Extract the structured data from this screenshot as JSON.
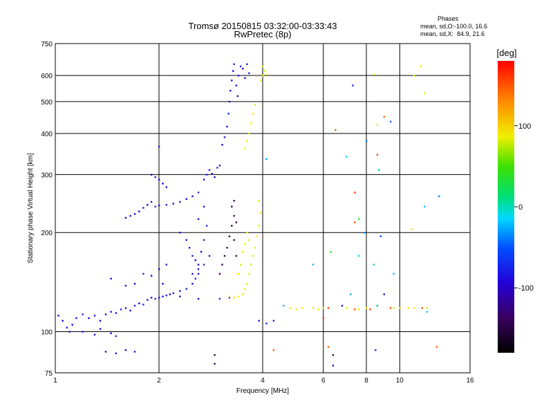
{
  "chart_data": {
    "type": "scatter",
    "title": "Tromsø 20150815 03:32:00-03:33:43",
    "subtitle": "RwPretec (8p)",
    "xlabel": "Frequency [MHz]",
    "ylabel": "Stationary phase Virtual Height [km]",
    "x_scale": "log",
    "y_scale": "log",
    "xlim": [
      1,
      16
    ],
    "ylim": [
      75,
      750
    ],
    "grid": true,
    "x_ticks": [
      "1",
      "2",
      "4",
      "6",
      "8",
      "10",
      "16"
    ],
    "x_tick_values": [
      1,
      2,
      4,
      6,
      8,
      10,
      16
    ],
    "y_ticks": [
      "75",
      "100",
      "200",
      "300",
      "400",
      "500",
      "600",
      "750"
    ],
    "y_tick_values": [
      75,
      100,
      200,
      300,
      400,
      500,
      600,
      750
    ],
    "legend": {
      "title": "Phases",
      "lines": [
        "mean, sd,O:-100.0, 16.6",
        "mean, sd,X:  84.9, 21.6"
      ]
    },
    "colorbar": {
      "label": "[deg]",
      "ticks": [
        "100",
        "0",
        "-100"
      ],
      "tick_values": [
        100,
        0,
        -100
      ],
      "range": [
        -180,
        180
      ]
    },
    "series": [
      {
        "polarization": "O",
        "points": [
          [
            1.02,
            112,
            -110
          ],
          [
            1.05,
            108,
            -112
          ],
          [
            1.08,
            103,
            -105
          ],
          [
            1.12,
            105,
            -108
          ],
          [
            1.15,
            110,
            -112
          ],
          [
            1.2,
            113,
            -100
          ],
          [
            1.25,
            110,
            -110
          ],
          [
            1.3,
            112,
            -105
          ],
          [
            1.35,
            108,
            -112
          ],
          [
            1.4,
            113,
            -110
          ],
          [
            1.45,
            115,
            -105
          ],
          [
            1.5,
            114,
            -110
          ],
          [
            1.55,
            117,
            -100
          ],
          [
            1.6,
            118,
            -108
          ],
          [
            1.65,
            116,
            -112
          ],
          [
            1.7,
            120,
            -105
          ],
          [
            1.75,
            122,
            -110
          ],
          [
            1.8,
            121,
            -100
          ],
          [
            1.85,
            125,
            -112
          ],
          [
            1.9,
            127,
            -108
          ],
          [
            1.95,
            126,
            -100
          ],
          [
            2.0,
            127,
            -110
          ],
          [
            2.05,
            128,
            -105
          ],
          [
            2.1,
            129,
            -100
          ],
          [
            2.15,
            130,
            -110
          ],
          [
            2.2,
            131,
            -105
          ],
          [
            2.3,
            133,
            -112
          ],
          [
            2.4,
            135,
            -100
          ],
          [
            2.5,
            140,
            -110
          ],
          [
            2.6,
            150,
            -108
          ],
          [
            2.7,
            160,
            -100
          ],
          [
            2.8,
            170,
            -112
          ],
          [
            1.1,
            100,
            -110
          ],
          [
            1.2,
            100,
            -105
          ],
          [
            1.3,
            98,
            -112
          ],
          [
            1.35,
            102,
            -108
          ],
          [
            1.45,
            99,
            -110
          ],
          [
            1.5,
            97,
            -100
          ],
          [
            1.4,
            87,
            -112
          ],
          [
            1.5,
            86,
            -108
          ],
          [
            1.6,
            88,
            -110
          ],
          [
            1.7,
            87,
            -105
          ],
          [
            1.45,
            145,
            -110
          ],
          [
            1.6,
            138,
            -105
          ],
          [
            1.7,
            140,
            -108
          ],
          [
            1.8,
            150,
            -100
          ],
          [
            1.9,
            148,
            -110
          ],
          [
            2.0,
            155,
            -112
          ],
          [
            2.1,
            160,
            -100
          ],
          [
            2.05,
            140,
            -108
          ],
          [
            1.6,
            222,
            -110
          ],
          [
            1.65,
            225,
            -105
          ],
          [
            1.7,
            228,
            -112
          ],
          [
            1.75,
            232,
            -110
          ],
          [
            1.8,
            238,
            -100
          ],
          [
            1.85,
            243,
            -108
          ],
          [
            1.9,
            248,
            -110
          ],
          [
            1.95,
            240,
            -105
          ],
          [
            2.0,
            242,
            -110
          ],
          [
            2.1,
            243,
            -100
          ],
          [
            2.2,
            245,
            -112
          ],
          [
            2.3,
            248,
            -105
          ],
          [
            2.4,
            253,
            -110
          ],
          [
            2.5,
            258,
            -108
          ],
          [
            2.6,
            265,
            -100
          ],
          [
            1.9,
            300,
            -110
          ],
          [
            1.95,
            295,
            -105
          ],
          [
            2.0,
            290,
            -112
          ],
          [
            2.05,
            282,
            -108
          ],
          [
            2.1,
            275,
            -110
          ],
          [
            2.0,
            365,
            -100
          ],
          [
            2.3,
            200,
            -110
          ],
          [
            2.4,
            190,
            -105
          ],
          [
            2.45,
            180,
            -112
          ],
          [
            2.5,
            170,
            -100
          ],
          [
            2.55,
            165,
            -108
          ],
          [
            2.6,
            160,
            -110
          ],
          [
            2.5,
            150,
            -105
          ],
          [
            2.55,
            145,
            -100
          ],
          [
            2.6,
            155,
            -112
          ],
          [
            2.65,
            175,
            -110
          ],
          [
            2.7,
            190,
            -105
          ],
          [
            2.75,
            210,
            -100
          ],
          [
            2.6,
            220,
            -112
          ],
          [
            2.7,
            240,
            -110
          ],
          [
            2.7,
            290,
            -110
          ],
          [
            2.75,
            300,
            -100
          ],
          [
            2.8,
            310,
            -105
          ],
          [
            2.85,
            302,
            -112
          ],
          [
            2.9,
            295,
            -110
          ],
          [
            2.95,
            315,
            -100
          ],
          [
            3.0,
            320,
            -108
          ],
          [
            3.05,
            370,
            -110
          ],
          [
            3.1,
            390,
            -105
          ],
          [
            3.15,
            420,
            -112
          ],
          [
            3.18,
            460,
            -100
          ],
          [
            3.2,
            500,
            -110
          ],
          [
            3.22,
            540,
            -108
          ],
          [
            3.25,
            580,
            -105
          ],
          [
            3.28,
            620,
            -110
          ],
          [
            3.3,
            650,
            -100
          ],
          [
            3.35,
            560,
            -112
          ],
          [
            3.38,
            520,
            -110
          ],
          [
            3.4,
            600,
            -105
          ],
          [
            3.45,
            640,
            -100
          ],
          [
            3.5,
            630,
            -110
          ],
          [
            3.55,
            590,
            -112
          ],
          [
            3.6,
            650,
            -108
          ],
          [
            3.65,
            610,
            -100
          ],
          [
            2.3,
            128,
            -105
          ],
          [
            2.6,
            126,
            -110
          ],
          [
            3.0,
            126,
            -100
          ],
          [
            3.2,
            127,
            -112
          ],
          [
            3.9,
            108,
            -110
          ],
          [
            4.1,
            106,
            -100
          ],
          [
            4.3,
            108,
            -105
          ],
          [
            6.4,
            79,
            -110
          ],
          [
            8.5,
            88,
            -100
          ],
          [
            6.8,
            120,
            -108
          ]
        ]
      },
      {
        "polarization": "O-purple",
        "points": [
          [
            3.0,
            150,
            -140
          ],
          [
            3.05,
            160,
            -150
          ],
          [
            3.1,
            170,
            -145
          ],
          [
            3.15,
            180,
            -140
          ],
          [
            3.2,
            195,
            -150
          ],
          [
            3.25,
            210,
            -145
          ],
          [
            3.3,
            225,
            -140
          ],
          [
            3.35,
            215,
            -150
          ],
          [
            3.25,
            240,
            -145
          ],
          [
            3.3,
            250,
            -140
          ],
          [
            3.3,
            190,
            -150
          ],
          [
            3.35,
            170,
            -145
          ],
          [
            2.9,
            85,
            -150
          ],
          [
            2.9,
            80,
            -140
          ],
          [
            6.4,
            85,
            -145
          ]
        ]
      },
      {
        "polarization": "X",
        "points": [
          [
            3.2,
            128,
            80
          ],
          [
            3.3,
            127,
            85
          ],
          [
            3.4,
            128,
            90
          ],
          [
            3.5,
            130,
            78
          ],
          [
            3.55,
            135,
            85
          ],
          [
            3.6,
            140,
            88
          ],
          [
            3.65,
            150,
            82
          ],
          [
            3.7,
            160,
            90
          ],
          [
            3.75,
            170,
            80
          ],
          [
            3.8,
            180,
            85
          ],
          [
            3.85,
            195,
            88
          ],
          [
            3.9,
            210,
            82
          ],
          [
            3.95,
            230,
            90
          ],
          [
            3.9,
            250,
            80
          ],
          [
            3.4,
            150,
            85
          ],
          [
            3.45,
            160,
            80
          ],
          [
            3.5,
            175,
            90
          ],
          [
            3.55,
            185,
            85
          ],
          [
            3.6,
            200,
            82
          ],
          [
            3.65,
            190,
            88
          ],
          [
            3.55,
            360,
            85
          ],
          [
            3.6,
            380,
            90
          ],
          [
            3.65,
            400,
            80
          ],
          [
            3.7,
            430,
            85
          ],
          [
            3.75,
            460,
            88
          ],
          [
            3.8,
            490,
            82
          ],
          [
            3.95,
            580,
            85
          ],
          [
            4.0,
            600,
            90
          ],
          [
            4.05,
            620,
            80
          ],
          [
            4.1,
            605,
            85
          ],
          [
            4.0,
            640,
            88
          ],
          [
            4.8,
            118,
            82
          ],
          [
            5.0,
            117,
            85
          ],
          [
            5.2,
            118,
            90
          ],
          [
            5.6,
            118,
            80
          ],
          [
            5.8,
            117,
            85
          ],
          [
            6.0,
            118,
            88
          ],
          [
            7.0,
            118,
            82
          ],
          [
            7.6,
            117,
            85
          ],
          [
            8.0,
            118,
            90
          ],
          [
            9.6,
            118,
            80
          ],
          [
            10.0,
            118,
            85
          ],
          [
            10.6,
            118,
            88
          ],
          [
            11.0,
            118,
            82
          ],
          [
            12.0,
            118,
            90
          ],
          [
            8.4,
            605,
            85
          ],
          [
            11.0,
            600,
            80
          ],
          [
            11.5,
            640,
            90
          ],
          [
            11.8,
            530,
            85
          ],
          [
            10.8,
            205,
            88
          ],
          [
            8.6,
            425,
            82
          ]
        ]
      },
      {
        "polarization": "X-red",
        "points": [
          [
            6.5,
            410,
            150
          ],
          [
            7.4,
            265,
            160
          ],
          [
            8.6,
            345,
            155
          ],
          [
            9.0,
            450,
            145
          ],
          [
            12.8,
            90,
            150
          ],
          [
            6.2,
            118,
            155
          ],
          [
            6.0,
            110,
            160
          ],
          [
            7.4,
            117,
            150
          ],
          [
            9.4,
            118,
            145
          ],
          [
            8.2,
            117,
            155
          ],
          [
            4.3,
            88,
            150
          ],
          [
            6.2,
            90,
            145
          ],
          [
            7.4,
            215,
            155
          ],
          [
            11.6,
            118,
            150
          ]
        ]
      },
      {
        "polarization": "scattered",
        "points": [
          [
            7.3,
            560,
            -100
          ],
          [
            9.4,
            435,
            -80
          ],
          [
            7.0,
            340,
            -20
          ],
          [
            8.0,
            380,
            -60
          ],
          [
            8.7,
            310,
            10
          ],
          [
            13.0,
            258,
            -60
          ],
          [
            11.8,
            240,
            -30
          ],
          [
            8.6,
            120,
            -100
          ],
          [
            9.0,
            130,
            -110
          ],
          [
            7.2,
            130,
            -40
          ],
          [
            8.6,
            120,
            10
          ],
          [
            12.0,
            115,
            -10
          ],
          [
            7.6,
            220,
            30
          ],
          [
            6.3,
            175,
            40
          ],
          [
            7.9,
            200,
            -60
          ],
          [
            8.8,
            195,
            -90
          ],
          [
            4.1,
            335,
            -50
          ],
          [
            5.6,
            160,
            -30
          ],
          [
            4.6,
            120,
            -40
          ],
          [
            7.6,
            170,
            -20
          ],
          [
            8.4,
            160,
            -10
          ],
          [
            9.6,
            150,
            -30
          ]
        ]
      }
    ]
  }
}
